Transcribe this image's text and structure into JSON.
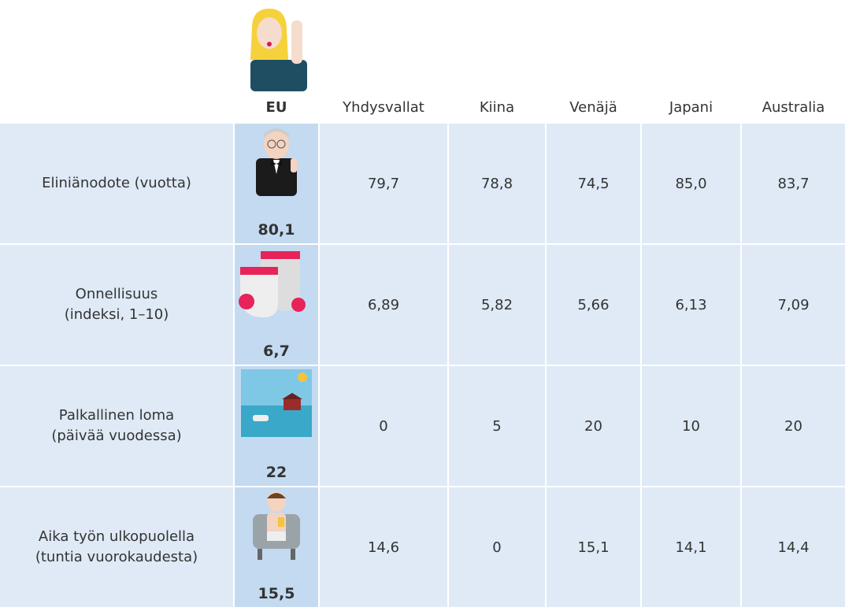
{
  "header": {
    "columns": [
      "EU",
      "Yhdysvallat",
      "Kiina",
      "Venäjä",
      "Japani",
      "Australia"
    ]
  },
  "table": {
    "rows": [
      {
        "label": [
          "Eliniänodote (vuotta)"
        ],
        "eu": "80,1",
        "values": [
          "79,7",
          "78,8",
          "74,5",
          "85,0",
          "83,7"
        ]
      },
      {
        "label": [
          "Onnellisuus",
          "(indeksi, 1–10)"
        ],
        "eu": "6,7",
        "values": [
          "6,89",
          "5,82",
          "5,66",
          "6,13",
          "7,09"
        ]
      },
      {
        "label": [
          "Palkallinen loma",
          "(päivää vuodessa)"
        ],
        "eu": "22",
        "values": [
          "0",
          "5",
          "20",
          "10",
          "20"
        ]
      },
      {
        "label": [
          "Aika työn ulkopuolella",
          "(tuntia vuorokaudesta)"
        ],
        "eu": "15,5",
        "values": [
          "14,6",
          "0",
          "15,1",
          "14,1",
          "14,4"
        ]
      }
    ]
  }
}
